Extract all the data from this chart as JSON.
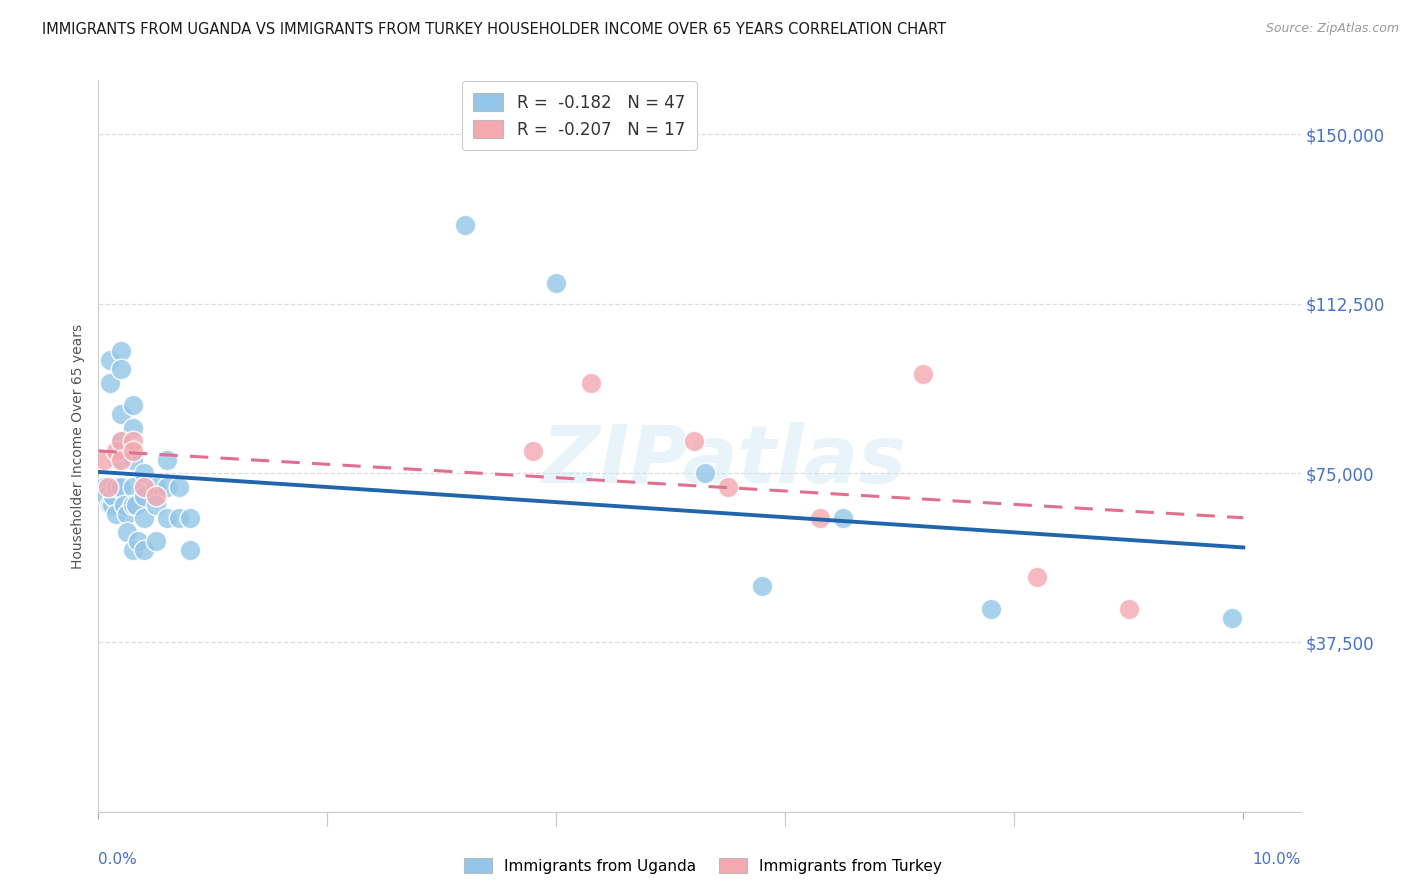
{
  "title": "IMMIGRANTS FROM UGANDA VS IMMIGRANTS FROM TURKEY HOUSEHOLDER INCOME OVER 65 YEARS CORRELATION CHART",
  "source": "Source: ZipAtlas.com",
  "ylabel": "Householder Income Over 65 years",
  "watermark": "ZIPatlas",
  "legend_uganda_r": "-0.182",
  "legend_uganda_n": "47",
  "legend_turkey_r": "-0.207",
  "legend_turkey_n": "17",
  "ymin": 0,
  "ymax": 162000,
  "xmin": 0.0,
  "xmax": 0.105,
  "uganda_color": "#93c6e8",
  "turkey_color": "#f4a8b0",
  "uganda_line_color": "#2166ac",
  "turkey_line_color": "#e07090",
  "background_color": "#ffffff",
  "grid_color": "#dddddd",
  "right_label_color": "#4472c4",
  "uganda_x": [
    0.0005,
    0.0007,
    0.001,
    0.001,
    0.001,
    0.0012,
    0.0013,
    0.0015,
    0.0015,
    0.0017,
    0.002,
    0.002,
    0.002,
    0.002,
    0.002,
    0.0022,
    0.0025,
    0.0025,
    0.003,
    0.003,
    0.003,
    0.003,
    0.003,
    0.003,
    0.0033,
    0.0035,
    0.004,
    0.004,
    0.004,
    0.004,
    0.005,
    0.005,
    0.005,
    0.006,
    0.006,
    0.006,
    0.007,
    0.007,
    0.008,
    0.008,
    0.032,
    0.04,
    0.053,
    0.058,
    0.065,
    0.078,
    0.099
  ],
  "uganda_y": [
    72000,
    70000,
    100000,
    95000,
    68000,
    68000,
    70000,
    72000,
    66000,
    78000,
    102000,
    98000,
    88000,
    82000,
    72000,
    68000,
    66000,
    62000,
    90000,
    85000,
    78000,
    72000,
    68000,
    58000,
    68000,
    60000,
    75000,
    70000,
    65000,
    58000,
    72000,
    68000,
    60000,
    78000,
    72000,
    65000,
    72000,
    65000,
    65000,
    58000,
    130000,
    117000,
    75000,
    50000,
    65000,
    45000,
    43000
  ],
  "turkey_x": [
    0.0005,
    0.0008,
    0.0015,
    0.002,
    0.002,
    0.003,
    0.003,
    0.004,
    0.005,
    0.038,
    0.043,
    0.052,
    0.055,
    0.063,
    0.072,
    0.082,
    0.09
  ],
  "turkey_y": [
    78000,
    72000,
    80000,
    82000,
    78000,
    82000,
    80000,
    72000,
    70000,
    80000,
    95000,
    82000,
    72000,
    65000,
    97000,
    52000,
    45000
  ]
}
